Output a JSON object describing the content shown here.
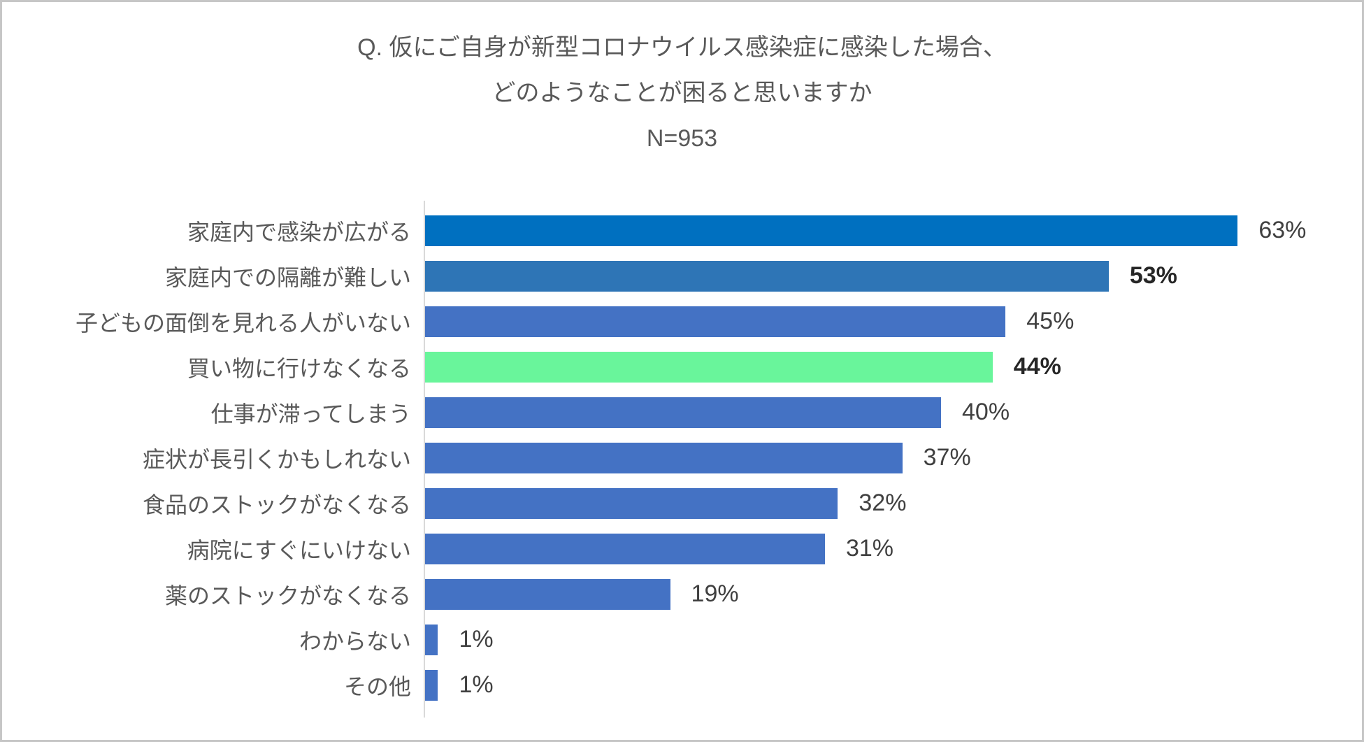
{
  "title": {
    "line1": "Q. 仮にご自身が新型コロナウイルス感染症に感染した場合、",
    "line2": "どのようなことが困ると思いますか",
    "line3": "N=953"
  },
  "colors": {
    "frame_border": "#c6c6c6",
    "axis": "#d9d9d9",
    "title_text": "#595959",
    "category_text": "#595959",
    "value_text": "#404040",
    "value_text_emphasis": "#262626",
    "bar_default": "#4472C4",
    "bar_top": "#0070C0",
    "bar_second": "#2E75B6",
    "bar_highlight": "#69F59B"
  },
  "chart_data": {
    "type": "bar",
    "orientation": "horizontal",
    "title": "Q. 仮にご自身が新型コロナウイルス感染症に感染した場合、どのようなことが困ると思いますか",
    "sample_size": "N=953",
    "xlim": [
      0,
      63
    ],
    "grid": false,
    "legend": false,
    "categories": [
      "家庭内で感染が広がる",
      "家庭内での隔離が難しい",
      "子どもの面倒を見れる人がいない",
      "買い物に行けなくなる",
      "仕事が滞ってしまう",
      "症状が長引くかもしれない",
      "食品のストックがなくなる",
      "病院にすぐにいけない",
      "薬のストックがなくなる",
      "わからない",
      "その他"
    ],
    "values": [
      63,
      53,
      45,
      44,
      40,
      37,
      32,
      31,
      19,
      1,
      1
    ],
    "bars": [
      {
        "label": "家庭内で感染が広がる",
        "value": 63,
        "display": "63%",
        "color": "#0070C0",
        "bold": false
      },
      {
        "label": "家庭内での隔離が難しい",
        "value": 53,
        "display": "53%",
        "color": "#2E75B6",
        "bold": true
      },
      {
        "label": "子どもの面倒を見れる人がいない",
        "value": 45,
        "display": "45%",
        "color": "#4472C4",
        "bold": false
      },
      {
        "label": "買い物に行けなくなる",
        "value": 44,
        "display": "44%",
        "color": "#69F59B",
        "bold": true
      },
      {
        "label": "仕事が滞ってしまう",
        "value": 40,
        "display": "40%",
        "color": "#4472C4",
        "bold": false
      },
      {
        "label": "症状が長引くかもしれない",
        "value": 37,
        "display": "37%",
        "color": "#4472C4",
        "bold": false
      },
      {
        "label": "食品のストックがなくなる",
        "value": 32,
        "display": "32%",
        "color": "#4472C4",
        "bold": false
      },
      {
        "label": "病院にすぐにいけない",
        "value": 31,
        "display": "31%",
        "color": "#4472C4",
        "bold": false
      },
      {
        "label": "薬のストックがなくなる",
        "value": 19,
        "display": "19%",
        "color": "#4472C4",
        "bold": false
      },
      {
        "label": "わからない",
        "value": 1,
        "display": "1%",
        "color": "#4472C4",
        "bold": false
      },
      {
        "label": "その他",
        "value": 1,
        "display": "1%",
        "color": "#4472C4",
        "bold": false
      }
    ]
  }
}
